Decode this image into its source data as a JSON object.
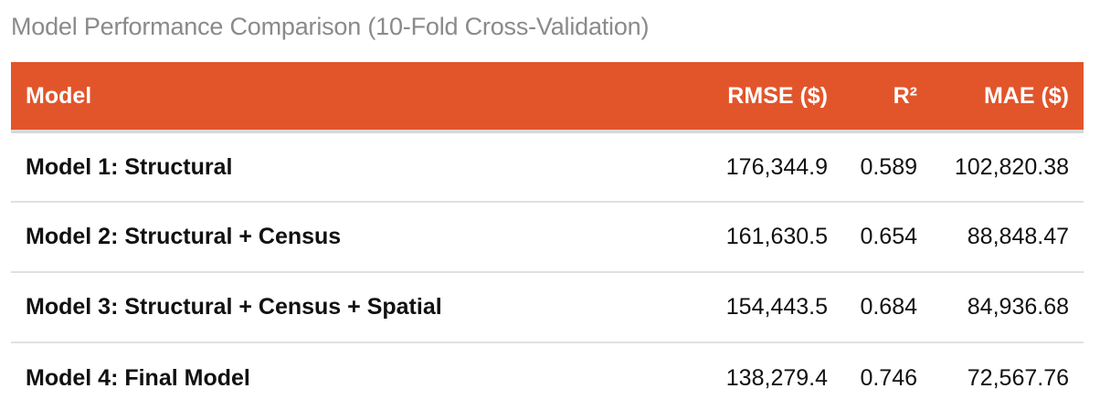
{
  "caption": "Model Performance Comparison (10-Fold Cross-Validation)",
  "colors": {
    "header_bg": "#e2552b",
    "header_text": "#ffffff",
    "caption_text": "#8a8a8a",
    "row_divider": "#e0e0e0"
  },
  "table": {
    "headers": {
      "model": "Model",
      "rmse": "RMSE ($)",
      "r2": "R²",
      "mae": "MAE ($)"
    },
    "rows": [
      {
        "model": "Model 1: Structural",
        "rmse": "176,344.9",
        "r2": "0.589",
        "mae": "102,820.38"
      },
      {
        "model": "Model 2: Structural + Census",
        "rmse": "161,630.5",
        "r2": "0.654",
        "mae": "88,848.47"
      },
      {
        "model": "Model 3: Structural + Census + Spatial",
        "rmse": "154,443.5",
        "r2": "0.684",
        "mae": "84,936.68"
      },
      {
        "model": "Model 4: Final Model",
        "rmse": "138,279.4",
        "r2": "0.746",
        "mae": "72,567.76"
      }
    ]
  }
}
